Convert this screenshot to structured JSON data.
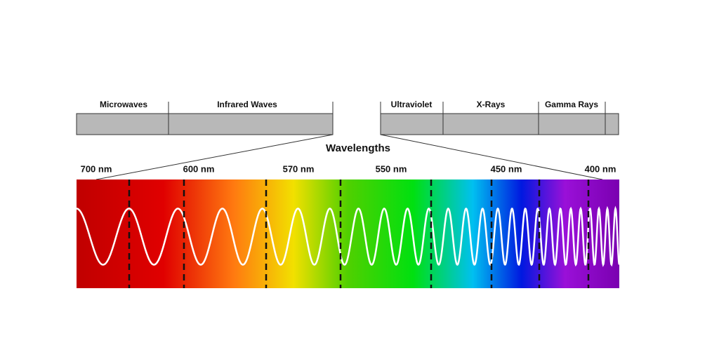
{
  "bands_left": [
    "Microwaves",
    "Infrared Waves"
  ],
  "bands_right": [
    "Ultraviolet",
    "X-Rays",
    "Gamma Rays"
  ],
  "title": "Wavelengths",
  "wavelength_labels": [
    "700 nm",
    "600 nm",
    "570 nm",
    "550 nm",
    "450 nm",
    "400 nm"
  ]
}
